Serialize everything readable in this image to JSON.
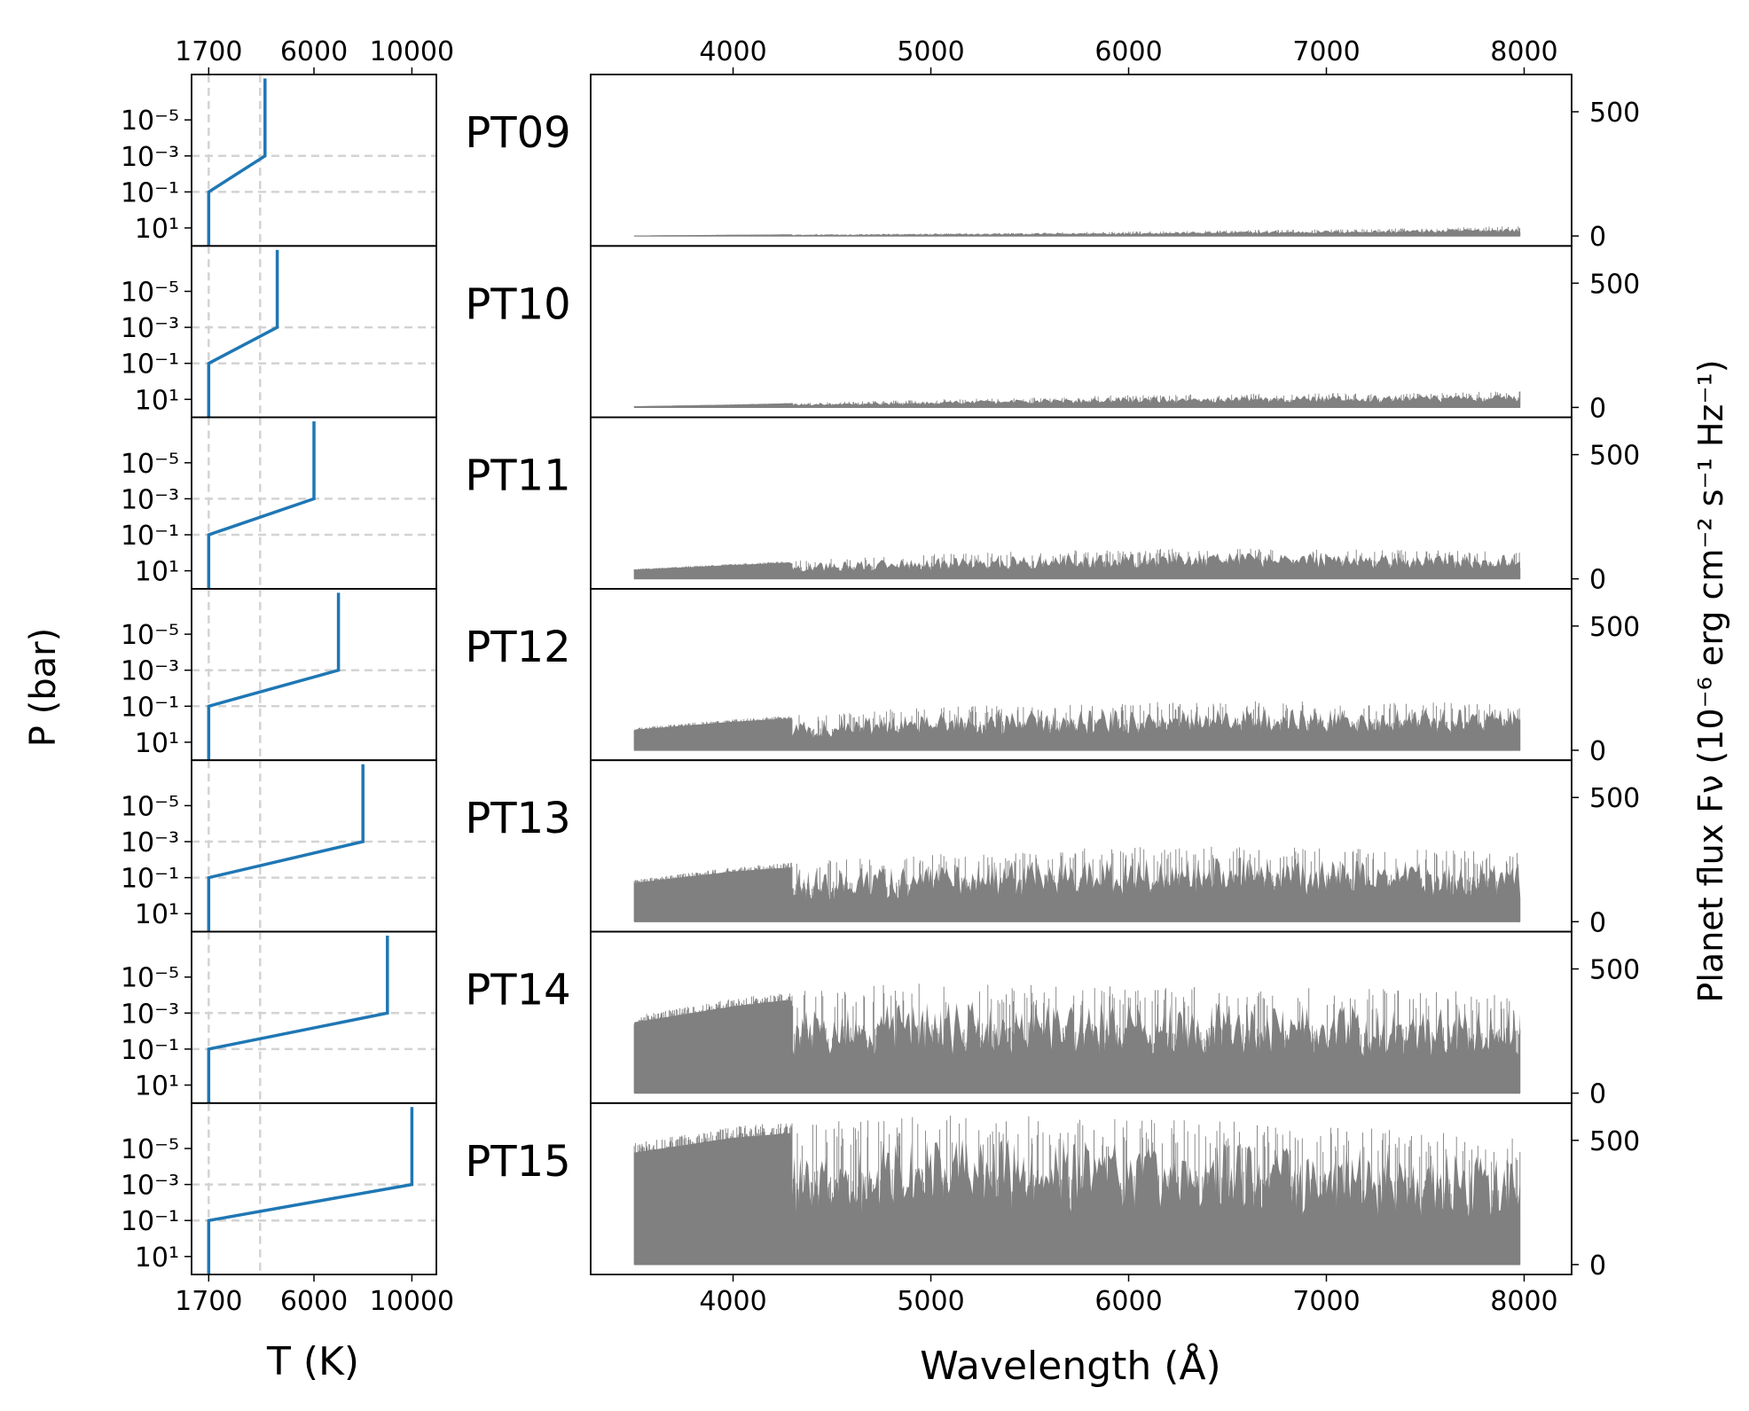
{
  "figure": {
    "pt_xlabel": "T (K)",
    "pt_ylabel": "P (bar)",
    "spec_xlabel": "Wavelength (Å)",
    "spec_ylabel": "Planet flux Fν (10⁻⁶ erg cm⁻² s⁻¹ Hz⁻¹)",
    "pt_xticks": [
      "1700",
      "6000",
      "10000"
    ],
    "pt_yticks": [
      "10⁻⁵",
      "10⁻³",
      "10⁻¹",
      "10¹"
    ],
    "spec_xticks": [
      "4000",
      "5000",
      "6000",
      "7000",
      "8000"
    ],
    "spec_yticks": [
      "0",
      "500"
    ],
    "colors": {
      "profile": "#1f77b4",
      "spectrum": "#808080",
      "guide": "#d3d3d3"
    }
  },
  "chart_data": [
    {
      "type": "line",
      "role": "pressure-temperature profiles",
      "xlabel": "T (K)",
      "ylabel": "P (bar)",
      "xlim": [
        1000,
        11000
      ],
      "ylim": [
        100,
        3e-08
      ],
      "yscale": "log",
      "x_ticks": [
        1700,
        6000,
        10000
      ],
      "y_ticks": [
        1e-05,
        0.001,
        0.1,
        10
      ],
      "guide_lines": {
        "vertical_T": [
          1700,
          3800
        ],
        "horizontal_P": [
          0.001,
          0.1
        ]
      },
      "panels": [
        {
          "label": "PT09",
          "T_lower": 1700,
          "T_upper": 4000,
          "P_break_low": 0.1,
          "P_break_high": 0.001,
          "P_top": 5e-08
        },
        {
          "label": "PT10",
          "T_lower": 1700,
          "T_upper": 4500,
          "P_break_low": 0.1,
          "P_break_high": 0.001,
          "P_top": 5e-08
        },
        {
          "label": "PT11",
          "T_lower": 1700,
          "T_upper": 6000,
          "P_break_low": 0.1,
          "P_break_high": 0.001,
          "P_top": 5e-08
        },
        {
          "label": "PT12",
          "T_lower": 1700,
          "T_upper": 7000,
          "P_break_low": 0.1,
          "P_break_high": 0.001,
          "P_top": 5e-08
        },
        {
          "label": "PT13",
          "T_lower": 1700,
          "T_upper": 8000,
          "P_break_low": 0.1,
          "P_break_high": 0.001,
          "P_top": 5e-08
        },
        {
          "label": "PT14",
          "T_lower": 1700,
          "T_upper": 9000,
          "P_break_low": 0.1,
          "P_break_high": 0.001,
          "P_top": 5e-08
        },
        {
          "label": "PT15",
          "T_lower": 1700,
          "T_upper": 10000,
          "P_break_low": 0.1,
          "P_break_high": 0.001,
          "P_top": 5e-08
        }
      ]
    },
    {
      "type": "area",
      "role": "emission spectra",
      "xlabel": "Wavelength (Å)",
      "ylabel": "Planet flux Fν (10⁻⁶ erg cm⁻² s⁻¹ Hz⁻¹)",
      "xlim": [
        3280,
        8240
      ],
      "ylim": [
        -40,
        650
      ],
      "x_ticks": [
        4000,
        5000,
        6000,
        7000,
        8000
      ],
      "y_ticks": [
        0,
        500
      ],
      "wavelength_range": [
        3500,
        8000
      ],
      "panels": [
        {
          "label": "PT09",
          "envelope": [
            [
              3500,
              2
            ],
            [
              4000,
              5
            ],
            [
              4500,
              8
            ],
            [
              5000,
              11
            ],
            [
              5500,
              14
            ],
            [
              6000,
              18
            ],
            [
              6500,
              23
            ],
            [
              7000,
              27
            ],
            [
              7500,
              32
            ],
            [
              7900,
              40
            ]
          ]
        },
        {
          "label": "PT10",
          "envelope": [
            [
              3500,
              5
            ],
            [
              4000,
              12
            ],
            [
              4500,
              22
            ],
            [
              5000,
              32
            ],
            [
              5500,
              40
            ],
            [
              6000,
              50
            ],
            [
              6500,
              55
            ],
            [
              7000,
              57
            ],
            [
              7500,
              60
            ],
            [
              7900,
              65
            ]
          ]
        },
        {
          "label": "PT11",
          "envelope": [
            [
              3500,
              40
            ],
            [
              4000,
              60
            ],
            [
              4500,
              80
            ],
            [
              5000,
              100
            ],
            [
              5500,
              112
            ],
            [
              6000,
              120
            ],
            [
              6500,
              125
            ],
            [
              7000,
              120
            ],
            [
              7500,
              115
            ],
            [
              7900,
              115
            ]
          ]
        },
        {
          "label": "PT12",
          "envelope": [
            [
              3500,
              90
            ],
            [
              4000,
              125
            ],
            [
              4500,
              150
            ],
            [
              5000,
              175
            ],
            [
              5500,
              185
            ],
            [
              6000,
              195
            ],
            [
              6500,
              200
            ],
            [
              7000,
              195
            ],
            [
              7500,
              195
            ],
            [
              7900,
              195
            ]
          ]
        },
        {
          "label": "PT13",
          "envelope": [
            [
              3500,
              170
            ],
            [
              4000,
              220
            ],
            [
              4500,
              250
            ],
            [
              5000,
              270
            ],
            [
              5500,
              290
            ],
            [
              6000,
              300
            ],
            [
              6500,
              305
            ],
            [
              7000,
              300
            ],
            [
              7500,
              290
            ],
            [
              7900,
              280
            ]
          ]
        },
        {
          "label": "PT14",
          "envelope": [
            [
              3500,
              310
            ],
            [
              4000,
              380
            ],
            [
              4500,
              430
            ],
            [
              5000,
              445
            ],
            [
              5500,
              440
            ],
            [
              6000,
              430
            ],
            [
              6500,
              430
            ],
            [
              7000,
              425
            ],
            [
              7500,
              415
            ],
            [
              7900,
              410
            ]
          ]
        },
        {
          "label": "PT15",
          "envelope": [
            [
              3500,
              490
            ],
            [
              4000,
              555
            ],
            [
              4500,
              590
            ],
            [
              5000,
              600
            ],
            [
              5500,
              600
            ],
            [
              6000,
              590
            ],
            [
              6500,
              580
            ],
            [
              7000,
              560
            ],
            [
              7500,
              540
            ],
            [
              7900,
              510
            ]
          ]
        }
      ]
    }
  ]
}
